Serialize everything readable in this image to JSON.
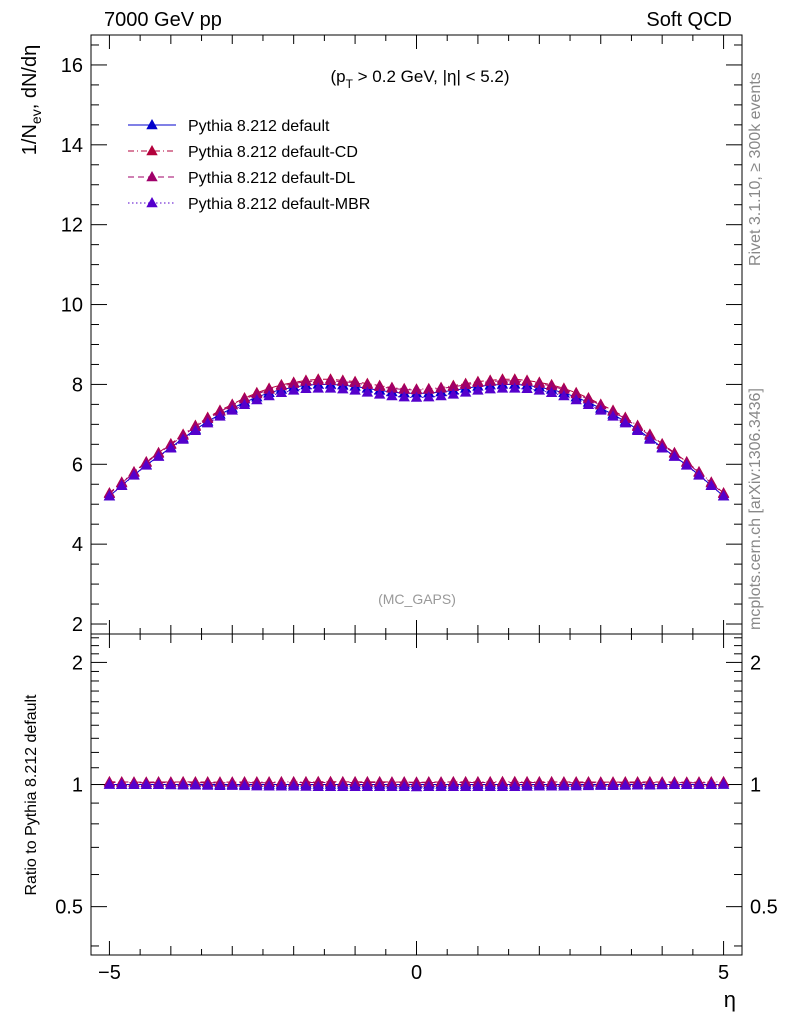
{
  "header": {
    "left": "7000 GeV pp",
    "right": "Soft QCD"
  },
  "side_notes": {
    "rivet": "Rivet 3.1.10, ≥ 300k events",
    "mcplots": "mcplots.cern.ch [arXiv:1306.3436]"
  },
  "chart_data": [
    {
      "type": "scatter",
      "panel": "main",
      "title": "",
      "annotation_cut": "(p_T > 0.2 GeV, |η| < 5.2)",
      "watermark": "(MC_GAPS)",
      "xlabel": "η",
      "ylabel": "1/N_ev, dN/dη",
      "xlim": [
        -5.3,
        5.3
      ],
      "ylim": [
        1.75,
        16.75
      ],
      "yticks": [
        2,
        4,
        6,
        8,
        10,
        12,
        14,
        16
      ],
      "grid": false,
      "legend_position": "top-left",
      "x": [
        -5.0,
        -4.8,
        -4.6,
        -4.4,
        -4.2,
        -4.0,
        -3.8,
        -3.6,
        -3.4,
        -3.2,
        -3.0,
        -2.8,
        -2.6,
        -2.4,
        -2.2,
        -2.0,
        -1.8,
        -1.6,
        -1.4,
        -1.2,
        -1.0,
        -0.8,
        -0.6,
        -0.4,
        -0.2,
        0.0,
        0.2,
        0.4,
        0.6,
        0.8,
        1.0,
        1.2,
        1.4,
        1.6,
        1.8,
        2.0,
        2.2,
        2.4,
        2.6,
        2.8,
        3.0,
        3.2,
        3.4,
        3.6,
        3.8,
        4.0,
        4.2,
        4.4,
        4.6,
        4.8,
        5.0
      ],
      "series": [
        {
          "name": "Pythia 8.212 default",
          "color": "#0000cc",
          "line": "solid",
          "values": [
            5.2,
            5.47,
            5.73,
            5.98,
            6.2,
            6.42,
            6.65,
            6.87,
            7.07,
            7.25,
            7.4,
            7.55,
            7.68,
            7.79,
            7.87,
            7.93,
            7.98,
            8.0,
            8.0,
            7.98,
            7.95,
            7.9,
            7.85,
            7.81,
            7.78,
            7.78,
            7.78,
            7.81,
            7.85,
            7.9,
            7.95,
            7.98,
            8.0,
            8.0,
            7.98,
            7.93,
            7.87,
            7.79,
            7.68,
            7.55,
            7.4,
            7.25,
            7.07,
            6.87,
            6.65,
            6.42,
            6.2,
            5.98,
            5.73,
            5.47,
            5.2
          ]
        },
        {
          "name": "Pythia 8.212 default-CD",
          "color": "#b3003b",
          "line": "dashdot",
          "values": [
            5.28,
            5.55,
            5.81,
            6.06,
            6.29,
            6.51,
            6.75,
            6.97,
            7.17,
            7.35,
            7.5,
            7.66,
            7.79,
            7.9,
            7.99,
            8.05,
            8.1,
            8.13,
            8.13,
            8.1,
            8.07,
            8.02,
            7.97,
            7.92,
            7.89,
            7.88,
            7.89,
            7.92,
            7.97,
            8.02,
            8.07,
            8.1,
            8.13,
            8.13,
            8.1,
            8.05,
            7.99,
            7.9,
            7.79,
            7.66,
            7.5,
            7.35,
            7.17,
            6.97,
            6.75,
            6.51,
            6.29,
            6.06,
            5.81,
            5.55,
            5.28
          ]
        },
        {
          "name": "Pythia 8.212 default-DL",
          "color": "#a0006a",
          "line": "dashed",
          "values": [
            5.26,
            5.53,
            5.79,
            6.04,
            6.27,
            6.49,
            6.72,
            6.94,
            7.14,
            7.32,
            7.48,
            7.63,
            7.76,
            7.87,
            7.96,
            8.02,
            8.07,
            8.09,
            8.09,
            8.07,
            8.04,
            7.99,
            7.94,
            7.9,
            7.87,
            7.86,
            7.87,
            7.9,
            7.94,
            7.99,
            8.04,
            8.07,
            8.09,
            8.09,
            8.07,
            8.02,
            7.96,
            7.87,
            7.76,
            7.63,
            7.48,
            7.32,
            7.14,
            6.94,
            6.72,
            6.49,
            6.27,
            6.04,
            5.79,
            5.53,
            5.26
          ]
        },
        {
          "name": "Pythia 8.212 default-MBR",
          "color": "#5500cc",
          "line": "dotted",
          "values": [
            5.2,
            5.46,
            5.72,
            5.97,
            6.19,
            6.4,
            6.62,
            6.84,
            7.03,
            7.2,
            7.35,
            7.49,
            7.61,
            7.71,
            7.79,
            7.85,
            7.89,
            7.9,
            7.9,
            7.88,
            7.85,
            7.8,
            7.75,
            7.71,
            7.68,
            7.67,
            7.68,
            7.71,
            7.75,
            7.8,
            7.85,
            7.88,
            7.9,
            7.9,
            7.89,
            7.85,
            7.79,
            7.71,
            7.61,
            7.49,
            7.35,
            7.2,
            7.03,
            6.84,
            6.62,
            6.4,
            6.19,
            5.97,
            5.72,
            5.46,
            5.2
          ]
        }
      ]
    },
    {
      "type": "scatter",
      "panel": "ratio",
      "title": "",
      "xlabel": "η",
      "ylabel": "Ratio to Pythia 8.212 default",
      "xlim": [
        -5.3,
        5.3
      ],
      "ylim": [
        0.38,
        2.35
      ],
      "yscale": "log",
      "yticks": [
        0.5,
        1,
        2
      ],
      "xticks": [
        -5,
        0,
        5
      ],
      "xtick_labels": [
        "−5",
        "0",
        "5"
      ],
      "grid": false,
      "reference_line": 1,
      "series": [
        {
          "name": "Pythia 8.212 default",
          "values": "all 1.0"
        },
        {
          "name": "Pythia 8.212 default-CD",
          "mean_ratio": 1.015
        },
        {
          "name": "Pythia 8.212 default-DL",
          "mean_ratio": 1.011
        },
        {
          "name": "Pythia 8.212 default-MBR",
          "mean_ratio": 0.988
        }
      ]
    }
  ]
}
